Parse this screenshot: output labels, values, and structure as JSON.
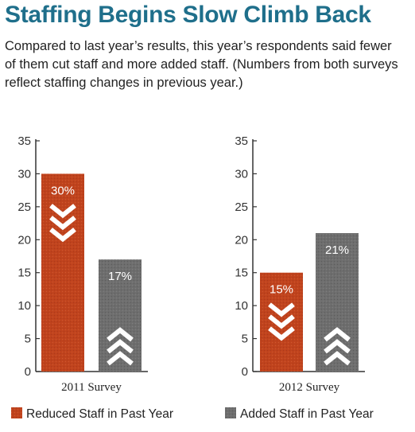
{
  "title": "Staffing Begins Slow Climb Back",
  "subtitle": "Compared to last year’s results, this year’s respondents said fewer of them cut staff and more added staff. (Numbers from both surveys reflect staffing changes in previous year.)",
  "colors": {
    "reduced": "#c0431d",
    "added": "#6e6e6e",
    "title": "#1f6f8b"
  },
  "legend": [
    "Reduced Staff in Past Year",
    "Added Staff in Past Year"
  ],
  "chart_data": [
    {
      "type": "bar",
      "categories": [
        "2011 Survey"
      ],
      "series": [
        {
          "name": "Reduced Staff in Past Year",
          "values": [
            30
          ],
          "label": "30%",
          "icon": "chevron-down-icon"
        },
        {
          "name": "Added Staff in Past Year",
          "values": [
            17
          ],
          "label": "17%",
          "icon": "chevron-up-icon"
        }
      ],
      "yticks": [
        "0",
        "5",
        "10",
        "15",
        "20",
        "25",
        "30",
        "35"
      ],
      "ylim": [
        0,
        35
      ]
    },
    {
      "type": "bar",
      "categories": [
        "2012 Survey"
      ],
      "series": [
        {
          "name": "Reduced Staff in Past Year",
          "values": [
            15
          ],
          "label": "15%",
          "icon": "chevron-down-icon"
        },
        {
          "name": "Added Staff in Past Year",
          "values": [
            21
          ],
          "label": "21%",
          "icon": "chevron-up-icon"
        }
      ],
      "yticks": [
        "0",
        "5",
        "10",
        "15",
        "20",
        "25",
        "30",
        "35"
      ],
      "ylim": [
        0,
        35
      ]
    }
  ]
}
